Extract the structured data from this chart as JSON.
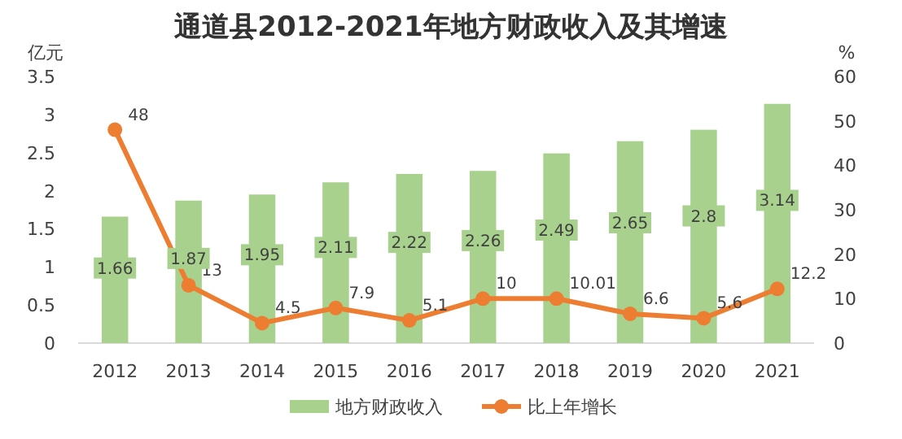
{
  "chart_data": {
    "type": "bar",
    "title": "通道县2012-2021年地方财政收入及其增速",
    "ylabel": "亿元",
    "y2label": "%",
    "categories": [
      "2012",
      "2013",
      "2014",
      "2015",
      "2016",
      "2017",
      "2018",
      "2019",
      "2020",
      "2021"
    ],
    "series": [
      {
        "name": "地方财政收入",
        "color": "#a9d18e",
        "values": [
          1.66,
          1.87,
          1.95,
          2.11,
          2.22,
          2.26,
          2.49,
          2.65,
          2.8,
          3.14
        ]
      },
      {
        "name": "比上年增长",
        "type": "line",
        "axis": "y2",
        "color": "#ed7d31",
        "marker": "circle",
        "values": [
          48,
          13,
          4.5,
          7.9,
          5.1,
          10,
          10.01,
          6.6,
          5.6,
          12.2
        ]
      }
    ],
    "ylim": [
      0,
      3.5
    ],
    "yticks": [
      0,
      {
        "value": 0.5,
        "label": "0.5"
      },
      1,
      {
        "value": 1.5,
        "label": "1.5"
      },
      2,
      {
        "value": 2.5,
        "label": "2.5"
      },
      3,
      {
        "value": 3.5,
        "label": "3.5"
      }
    ],
    "y2lim": [
      0,
      60
    ],
    "y2ticks": [
      0,
      10,
      20,
      30,
      40,
      50,
      60
    ],
    "data_labels": true,
    "legend": "bottom",
    "grid": false
  }
}
